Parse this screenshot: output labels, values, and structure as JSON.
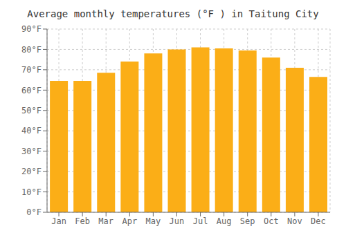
{
  "chart_data": {
    "type": "bar",
    "title": "Average monthly temperatures (°F ) in Taitung City",
    "categories": [
      "Jan",
      "Feb",
      "Mar",
      "Apr",
      "May",
      "Jun",
      "Jul",
      "Aug",
      "Sep",
      "Oct",
      "Nov",
      "Dec"
    ],
    "values": [
      64.5,
      64.5,
      68.5,
      74,
      78,
      80,
      81,
      80.5,
      79.5,
      76,
      71,
      66.5
    ],
    "color": "#FBAE17",
    "ylim": [
      0,
      90
    ],
    "yticks": [
      {
        "value": 0,
        "label": "0°F"
      },
      {
        "value": 10,
        "label": "10°F"
      },
      {
        "value": 20,
        "label": "20°F"
      },
      {
        "value": 30,
        "label": "30°F"
      },
      {
        "value": 40,
        "label": "40°F"
      },
      {
        "value": 50,
        "label": "50°F"
      },
      {
        "value": 60,
        "label": "60°F"
      },
      {
        "value": 70,
        "label": "70°F"
      },
      {
        "value": 80,
        "label": "80°F"
      },
      {
        "value": 90,
        "label": "90°F"
      }
    ],
    "grid": true
  }
}
